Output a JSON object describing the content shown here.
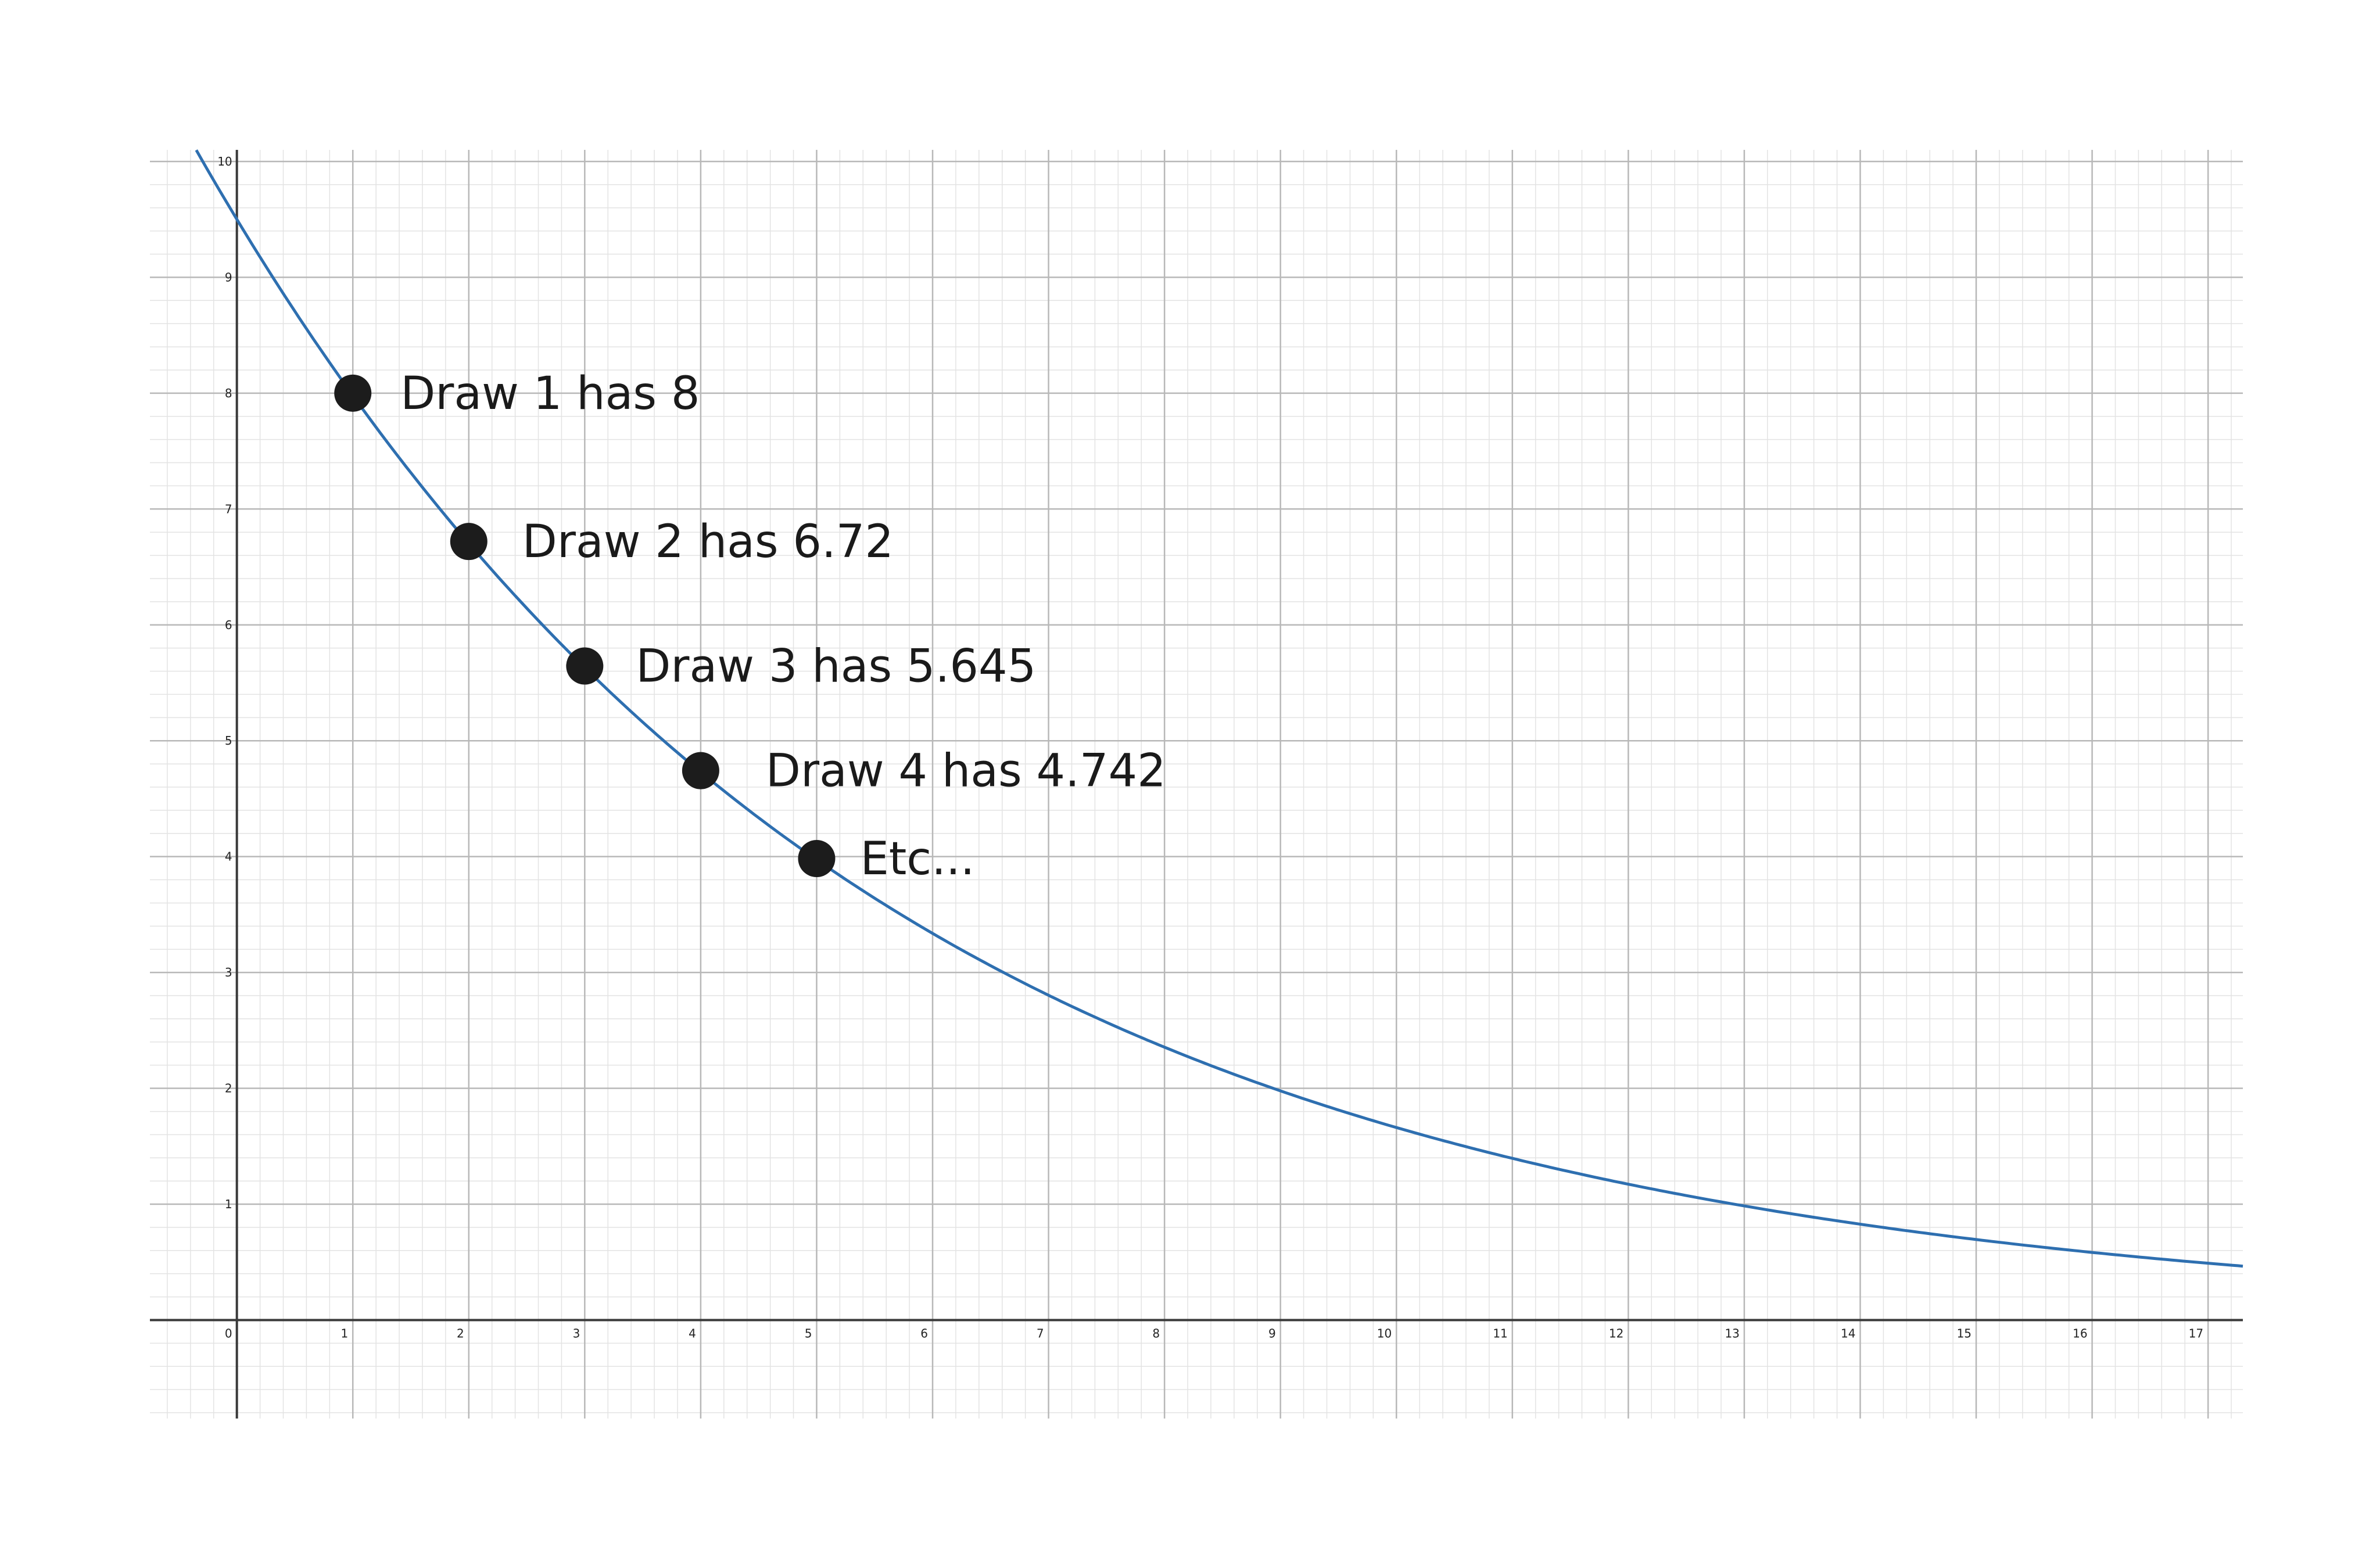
{
  "chart_data": {
    "type": "line",
    "title": "",
    "xlabel": "",
    "ylabel": "",
    "xlim": [
      -0.75,
      17.3
    ],
    "ylim": [
      -0.85,
      10.1
    ],
    "grid": true,
    "minor_grid": true,
    "x_ticks": [
      "0",
      "1",
      "2",
      "3",
      "4",
      "5",
      "6",
      "7",
      "8",
      "9",
      "10",
      "11",
      "12",
      "13",
      "14",
      "15",
      "16",
      "17"
    ],
    "y_ticks": [
      "1",
      "2",
      "3",
      "4",
      "5",
      "6",
      "7",
      "8",
      "9",
      "10"
    ],
    "curve": {
      "formula": "y = 9.5 * 0.84^x",
      "color": "#2e6fb0",
      "x_start": -0.35,
      "x_end": 17.3
    },
    "points": [
      {
        "x": 1,
        "y": 8,
        "label": "Draw 1 has 8"
      },
      {
        "x": 2,
        "y": 6.72,
        "label": "Draw 2 has 6.72"
      },
      {
        "x": 3,
        "y": 5.645,
        "label": "Draw 3 has 5.645"
      },
      {
        "x": 4,
        "y": 4.742,
        "label": "Draw 4 has 4.742"
      },
      {
        "x": 5,
        "y": 3.983,
        "label": "Etc..."
      }
    ],
    "colors": {
      "curve": "#2e6fb0",
      "point": "#1c1c1c",
      "major_grid": "#b8b8b8",
      "minor_grid": "#e3e3e3",
      "axis": "#3a3a3a"
    }
  }
}
